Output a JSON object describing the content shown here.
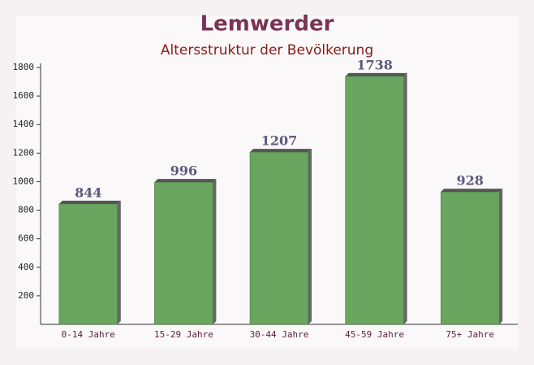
{
  "chart_data": {
    "type": "bar",
    "title": "Lemwerder",
    "subtitle": "Altersstruktur der Bevölkerung",
    "categories": [
      "0-14 Jahre",
      "15-29 Jahre",
      "30-44 Jahre",
      "45-59 Jahre",
      "75+ Jahre"
    ],
    "values": [
      844,
      996,
      1207,
      1738,
      928
    ],
    "color": "#6aa560",
    "ylim": [
      0,
      1800
    ],
    "yticks": [
      200,
      400,
      600,
      800,
      1000,
      1200,
      1400,
      1600,
      1800
    ]
  }
}
